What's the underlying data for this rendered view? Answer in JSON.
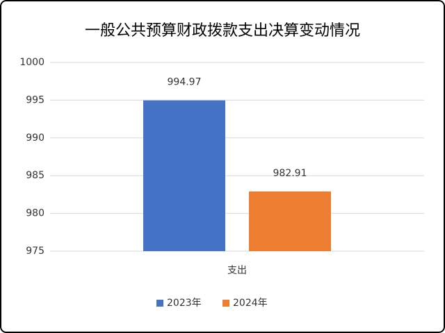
{
  "chart_data": {
    "type": "bar",
    "title": "一般公共预算财政拨款支出决算变动情况",
    "categories": [
      "支出"
    ],
    "series": [
      {
        "name": "2023年",
        "color": "#4472c4",
        "values": [
          994.97
        ]
      },
      {
        "name": "2024年",
        "color": "#ed7d31",
        "values": [
          982.91
        ]
      }
    ],
    "ylim": [
      975,
      1000
    ],
    "yticks": [
      975,
      980,
      985,
      990,
      995,
      1000
    ],
    "grid": true,
    "legend": "bottom"
  }
}
